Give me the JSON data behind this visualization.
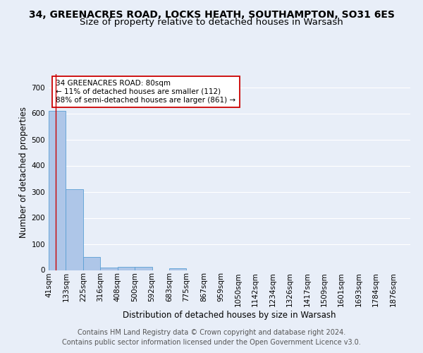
{
  "title_line1": "34, GREENACRES ROAD, LOCKS HEATH, SOUTHAMPTON, SO31 6ES",
  "title_line2": "Size of property relative to detached houses in Warsash",
  "xlabel": "Distribution of detached houses by size in Warsash",
  "ylabel": "Number of detached properties",
  "footnote1": "Contains HM Land Registry data © Crown copyright and database right 2024.",
  "footnote2": "Contains public sector information licensed under the Open Government Licence v3.0.",
  "bin_labels": [
    "41sqm",
    "133sqm",
    "225sqm",
    "316sqm",
    "408sqm",
    "500sqm",
    "592sqm",
    "683sqm",
    "775sqm",
    "867sqm",
    "959sqm",
    "1050sqm",
    "1142sqm",
    "1234sqm",
    "1326sqm",
    "1417sqm",
    "1509sqm",
    "1601sqm",
    "1693sqm",
    "1784sqm",
    "1876sqm"
  ],
  "bin_values": [
    610,
    310,
    50,
    10,
    12,
    12,
    0,
    8,
    0,
    0,
    0,
    0,
    0,
    0,
    0,
    0,
    0,
    0,
    0,
    0,
    0
  ],
  "bar_color": "#aec6e8",
  "bar_edge_color": "#5a9fd4",
  "subject_line_color": "#cc0000",
  "annotation_text": "34 GREENACRES ROAD: 80sqm\n← 11% of detached houses are smaller (112)\n88% of semi-detached houses are larger (861) →",
  "ylim": [
    0,
    750
  ],
  "yticks": [
    0,
    100,
    200,
    300,
    400,
    500,
    600,
    700
  ],
  "bg_color": "#e8eef8",
  "plot_bg_color": "#e8eef8",
  "grid_color": "#ffffff",
  "title1_fontsize": 10,
  "title2_fontsize": 9.5,
  "axis_fontsize": 8.5,
  "tick_fontsize": 7.5,
  "annotation_fontsize": 7.5,
  "footnote_fontsize": 7.0
}
